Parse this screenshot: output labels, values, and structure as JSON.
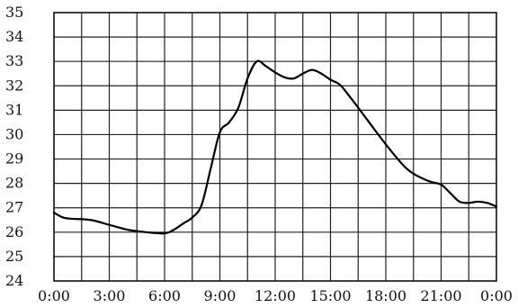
{
  "chart_data": {
    "type": "line",
    "title": "",
    "xlabel": "",
    "ylabel": "",
    "grid": true,
    "xlim": [
      "0:00",
      "24:00"
    ],
    "ylim": [
      24,
      35
    ],
    "x_ticks": [
      "0:00",
      "3:00",
      "6:00",
      "9:00",
      "12:00",
      "15:00",
      "18:00",
      "21:00",
      "0:00"
    ],
    "y_ticks": [
      "24",
      "25",
      "26",
      "27",
      "28",
      "29",
      "30",
      "31",
      "32",
      "33",
      "34",
      "35"
    ],
    "x_minor_gridlines_every_hours": 1.5,
    "series": [
      {
        "x": [
          "0:00",
          "0:30",
          "1:00",
          "2:00",
          "3:00",
          "4:00",
          "5:00",
          "6:00",
          "6:30",
          "7:00",
          "7:30",
          "8:00",
          "8:30",
          "9:00",
          "9:30",
          "10:00",
          "10:30",
          "11:00",
          "11:30",
          "12:00",
          "12:30",
          "13:00",
          "13:30",
          "14:00",
          "14:30",
          "15:00",
          "15:30",
          "16:00",
          "17:00",
          "18:00",
          "19:00",
          "19:30",
          "20:00",
          "20:30",
          "21:00",
          "21:30",
          "22:00",
          "22:30",
          "23:00",
          "23:30",
          "0:00"
        ],
        "values": [
          26.8,
          26.6,
          26.55,
          26.5,
          26.3,
          26.1,
          26.0,
          25.95,
          26.1,
          26.35,
          26.6,
          27.1,
          28.6,
          30.1,
          30.5,
          31.1,
          32.3,
          33.0,
          32.8,
          32.55,
          32.35,
          32.3,
          32.5,
          32.65,
          32.5,
          32.25,
          32.05,
          31.6,
          30.6,
          29.6,
          28.7,
          28.4,
          28.2,
          28.05,
          27.95,
          27.6,
          27.25,
          27.2,
          27.25,
          27.2,
          27.05
        ]
      }
    ]
  }
}
